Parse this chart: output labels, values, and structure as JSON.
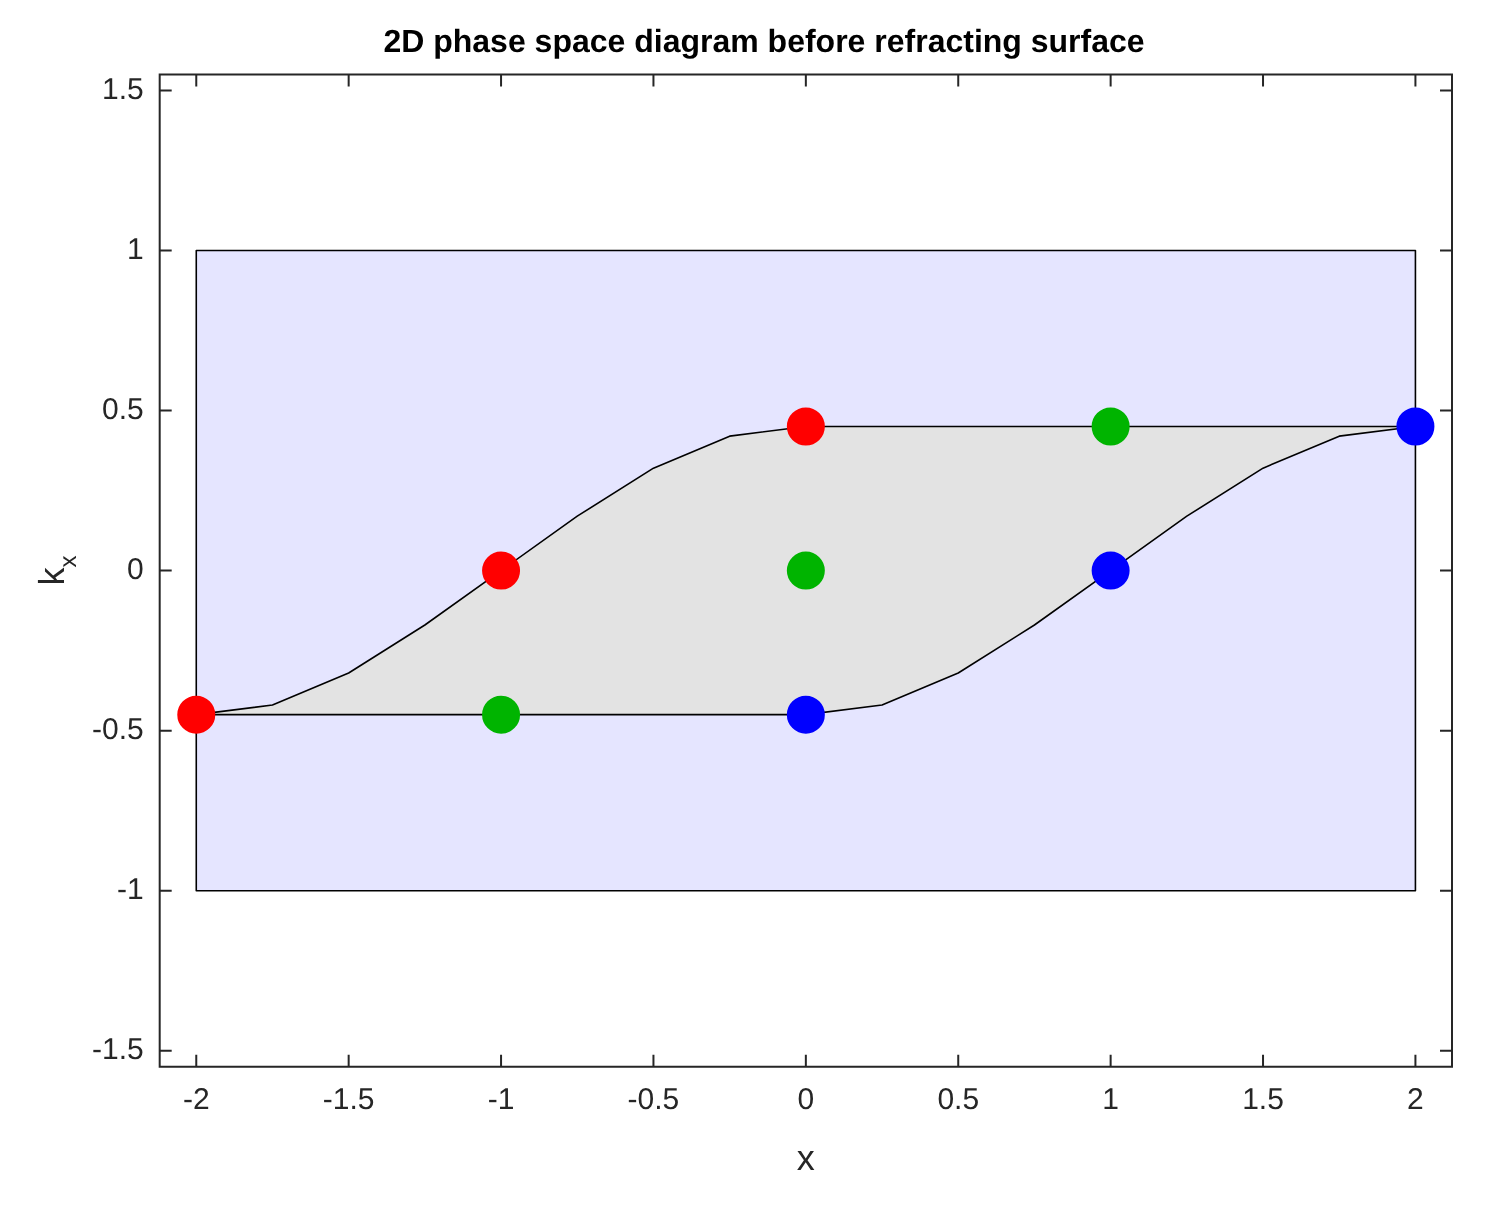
{
  "chart_data": {
    "type": "scatter",
    "title": "2D phase space diagram before refracting surface",
    "xlabel": "x",
    "ylabel": "k$_{x}$",
    "xlim": [
      -2.12,
      2.12
    ],
    "xticks": [
      -2,
      -1.5,
      -1,
      -0.5,
      0,
      0.5,
      1,
      1.5,
      2
    ],
    "ylim": [
      -1.55,
      1.55
    ],
    "yticks": [
      -1.5,
      -1,
      -0.5,
      0,
      0.5,
      1,
      1.5
    ],
    "legend": false,
    "series": [
      {
        "type": "area",
        "color": "#e5e5ff",
        "x": [
          -2,
          2,
          2,
          -2,
          -2
        ],
        "values": [
          -1,
          -1,
          1,
          1,
          -1
        ]
      },
      {
        "type": "area",
        "color": "#e3e3e3",
        "x": [
          -2,
          -1.75,
          -1.5,
          -1.25,
          -1,
          -0.75,
          -0.5,
          -0.25,
          0,
          2,
          1.75,
          1.5,
          1.25,
          1,
          0.75,
          0.5,
          0.25,
          0,
          -2
        ],
        "values": [
          -0.45,
          -0.42,
          -0.32,
          -0.17,
          0,
          0.17,
          0.32,
          0.42,
          0.45,
          0.45,
          0.42,
          0.32,
          0.17,
          0,
          -0.17,
          -0.32,
          -0.42,
          -0.45,
          -0.45
        ]
      },
      {
        "marker": "circle",
        "color": "#ff0000",
        "x": [
          -2,
          -1,
          0
        ],
        "values": [
          -0.45,
          0,
          0.45
        ]
      },
      {
        "marker": "circle",
        "color": "#00b400",
        "x": [
          -1,
          0,
          1
        ],
        "values": [
          -0.45,
          0,
          0.45
        ]
      },
      {
        "marker": "circle",
        "color": "#0000ff",
        "x": [
          0,
          1,
          2
        ],
        "values": [
          -0.45,
          0,
          0.45
        ]
      }
    ]
  }
}
